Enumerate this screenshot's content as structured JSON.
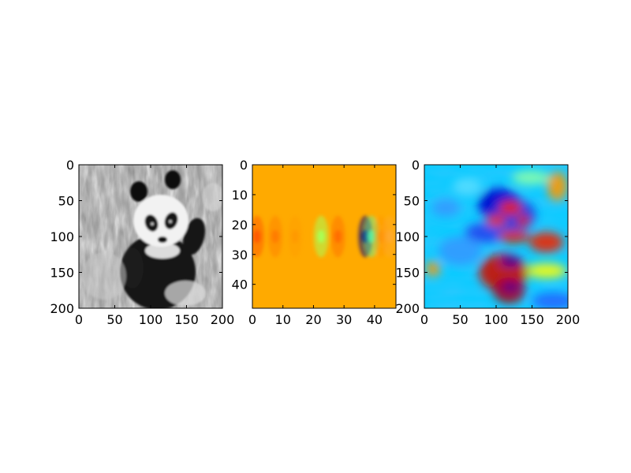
{
  "chart_data": [
    {
      "type": "heatmap",
      "colormap": "gray",
      "content": "grayscale photo of a giant panda sitting among plants",
      "xlim": [
        0,
        200
      ],
      "ylim": [
        200,
        0
      ],
      "xticks": [
        0,
        50,
        100,
        150,
        200
      ],
      "yticks": [
        0,
        50,
        100,
        150,
        200
      ],
      "xtick_labels": [
        "0",
        "50",
        "100",
        "150",
        "200"
      ],
      "ytick_labels": [
        "0",
        "50",
        "100",
        "150",
        "200"
      ]
    },
    {
      "type": "heatmap",
      "colormap": "jet",
      "background_color": "#ffaa00",
      "xlim": [
        0,
        47
      ],
      "ylim": [
        48,
        0
      ],
      "xticks": [
        0,
        10,
        20,
        30,
        40
      ],
      "yticks": [
        0,
        10,
        20,
        30,
        40
      ],
      "xtick_labels": [
        "0",
        "10",
        "20",
        "30",
        "40"
      ],
      "ytick_labels": [
        "0",
        "10",
        "20",
        "30",
        "40"
      ],
      "bands": [
        {
          "y_center": 24,
          "x_center": 1.5,
          "color": "#ff5500",
          "strength": 0.9
        },
        {
          "y_center": 24,
          "x_center": 7.5,
          "color": "#ff6a00",
          "strength": 0.6
        },
        {
          "y_center": 24,
          "x_center": 14,
          "color": "#ff8800",
          "strength": 0.35
        },
        {
          "y_center": 24,
          "x_center": 22.5,
          "color": "#aaff55",
          "strength": 1.0
        },
        {
          "y_center": 24,
          "x_center": 28,
          "color": "#ff6000",
          "strength": 0.7
        },
        {
          "y_center": 24,
          "x_center": 37,
          "color": "#000080",
          "strength": 1.0
        },
        {
          "y_center": 24,
          "x_center": 39,
          "color": "#55ffaa",
          "strength": 0.8
        },
        {
          "y_center": 24,
          "x_center": 42,
          "color": "#ff8800",
          "strength": 0.5
        },
        {
          "y_center": 24,
          "x_center": 45,
          "color": "#ffaa55",
          "strength": 0.4
        }
      ]
    },
    {
      "type": "heatmap",
      "colormap": "jet",
      "background_color": "#00ccff",
      "xlim": [
        0,
        200
      ],
      "ylim": [
        200,
        0
      ],
      "xticks": [
        0,
        50,
        100,
        150,
        200
      ],
      "yticks": [
        0,
        50,
        100,
        150,
        200
      ],
      "xtick_labels": [
        "0",
        "50",
        "100",
        "150",
        "200"
      ],
      "ytick_labels": [
        "0",
        "50",
        "100",
        "150",
        "200"
      ],
      "blobs": [
        {
          "x": 105,
          "y": 55,
          "rx": 30,
          "ry": 22,
          "color": "#0000cc"
        },
        {
          "x": 125,
          "y": 70,
          "rx": 30,
          "ry": 22,
          "color": "#1133dd"
        },
        {
          "x": 85,
          "y": 95,
          "rx": 28,
          "ry": 14,
          "color": "#2244ee"
        },
        {
          "x": 120,
          "y": 60,
          "rx": 16,
          "ry": 10,
          "color": "#ee2200"
        },
        {
          "x": 100,
          "y": 78,
          "rx": 14,
          "ry": 8,
          "color": "#ee3300"
        },
        {
          "x": 138,
          "y": 78,
          "rx": 10,
          "ry": 8,
          "color": "#dd2200"
        },
        {
          "x": 125,
          "y": 100,
          "rx": 22,
          "ry": 9,
          "color": "#dd2200"
        },
        {
          "x": 170,
          "y": 108,
          "rx": 24,
          "ry": 14,
          "color": "#ee2200"
        },
        {
          "x": 110,
          "y": 150,
          "rx": 34,
          "ry": 26,
          "color": "#cc1100"
        },
        {
          "x": 118,
          "y": 175,
          "rx": 22,
          "ry": 18,
          "color": "#aa0000"
        },
        {
          "x": 120,
          "y": 135,
          "rx": 14,
          "ry": 7,
          "color": "#000099"
        },
        {
          "x": 120,
          "y": 170,
          "rx": 12,
          "ry": 5,
          "color": "#0000aa"
        },
        {
          "x": 170,
          "y": 148,
          "rx": 28,
          "ry": 10,
          "color": "#ffff00"
        },
        {
          "x": 185,
          "y": 30,
          "rx": 14,
          "ry": 20,
          "color": "#ff9900"
        },
        {
          "x": 148,
          "y": 18,
          "rx": 26,
          "ry": 10,
          "color": "#88ffaa"
        },
        {
          "x": 12,
          "y": 145,
          "rx": 10,
          "ry": 10,
          "color": "#ff9900"
        },
        {
          "x": 50,
          "y": 120,
          "rx": 30,
          "ry": 20,
          "color": "#3399ff"
        },
        {
          "x": 30,
          "y": 60,
          "rx": 20,
          "ry": 12,
          "color": "#3399ff"
        },
        {
          "x": 180,
          "y": 190,
          "rx": 30,
          "ry": 12,
          "color": "#2266ff"
        },
        {
          "x": 60,
          "y": 30,
          "rx": 20,
          "ry": 12,
          "color": "#55ddff"
        }
      ]
    }
  ]
}
